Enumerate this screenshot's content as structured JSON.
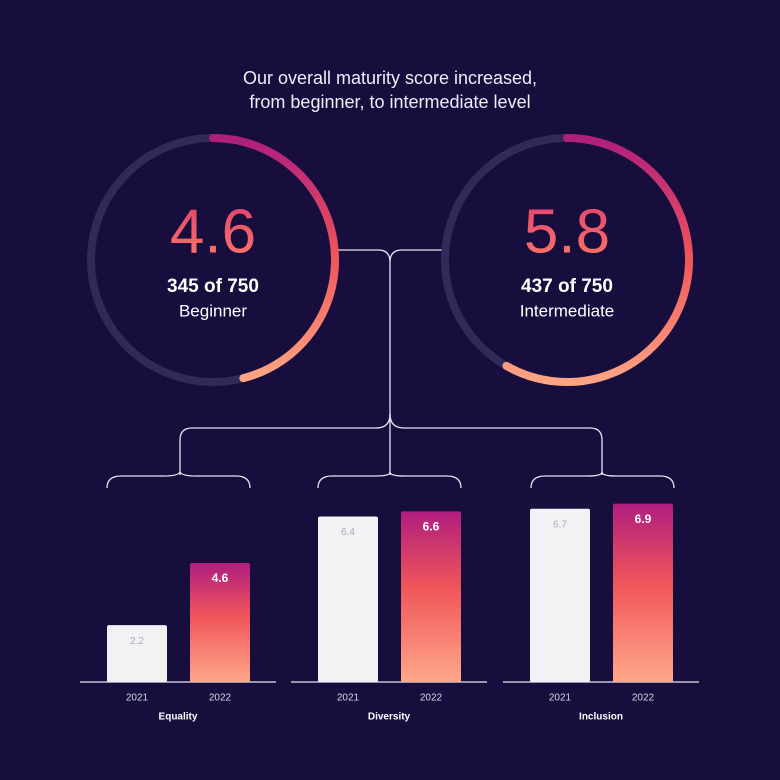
{
  "title": [
    "Our overall maturity score increased,",
    "from beginner, to intermediate level"
  ],
  "chart_data": [
    {
      "type": "gauge",
      "value": 4.6,
      "score": 345,
      "max": 750,
      "score_label": "345 of 750",
      "level": "Beginner"
    },
    {
      "type": "gauge",
      "value": 5.8,
      "score": 437,
      "max": 750,
      "score_label": "437 of 750",
      "level": "Intermediate"
    },
    {
      "type": "bar",
      "title": "Equality",
      "categories": [
        "2021",
        "2022"
      ],
      "values": [
        2.2,
        4.6
      ],
      "ylim": [
        0,
        7
      ]
    },
    {
      "type": "bar",
      "title": "Diversity",
      "categories": [
        "2021",
        "2022"
      ],
      "values": [
        6.4,
        6.6
      ],
      "ylim": [
        0,
        7
      ]
    },
    {
      "type": "bar",
      "title": "Inclusion",
      "categories": [
        "2021",
        "2022"
      ],
      "values": [
        6.7,
        6.9
      ],
      "ylim": [
        0,
        7
      ]
    }
  ]
}
